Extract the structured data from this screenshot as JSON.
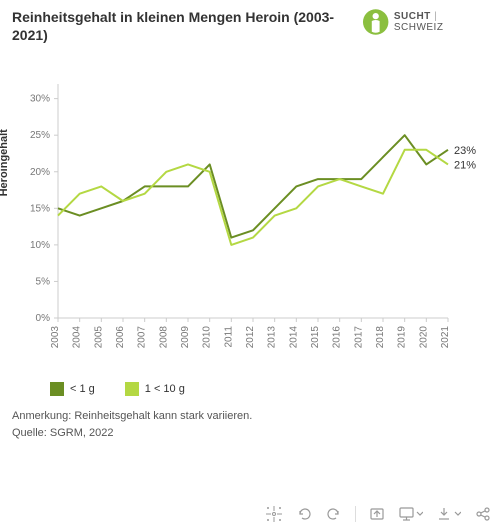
{
  "title": "Reinheitsgehalt in kleinen Mengen Heroin (2003-2021)",
  "logo": {
    "text_bold": "SUCHT",
    "text_light": "SCHWEIZ",
    "color": "#8bbf3f"
  },
  "chart": {
    "type": "line",
    "y_axis_title": "Heroingehalt",
    "y_ticks": [
      0,
      5,
      10,
      15,
      20,
      25,
      30
    ],
    "y_tick_labels": [
      "0%",
      "5%",
      "10%",
      "15%",
      "20%",
      "25%",
      "30%"
    ],
    "ylim": [
      0,
      32
    ],
    "x_categories": [
      "2003",
      "2004",
      "2005",
      "2006",
      "2007",
      "2008",
      "2009",
      "2010",
      "2011",
      "2012",
      "2013",
      "2014",
      "2015",
      "2016",
      "2017",
      "2018",
      "2019",
      "2020",
      "2021"
    ],
    "series": [
      {
        "name": "< 1 g",
        "color": "#6b8e23",
        "values": [
          15,
          14,
          15,
          16,
          18,
          18,
          18,
          21,
          11,
          12,
          15,
          18,
          19,
          19,
          19,
          22,
          25,
          21,
          23
        ],
        "end_label": "23%"
      },
      {
        "name": "1 < 10 g",
        "color": "#b4d843",
        "values": [
          14,
          17,
          18,
          16,
          17,
          20,
          21,
          20,
          10,
          11,
          14,
          15,
          18,
          19,
          18,
          17,
          23,
          23,
          21
        ],
        "end_label": "21%"
      }
    ],
    "line_width": 2,
    "background_color": "#ffffff",
    "axis_color": "#cccccc",
    "tick_color": "#cccccc",
    "tick_label_color": "#777777",
    "tick_label_fontsize": 10,
    "end_label_color": "#333333",
    "end_label_fontsize": 11
  },
  "legend": {
    "items": [
      {
        "label": "< 1 g",
        "color": "#6b8e23"
      },
      {
        "label": "1 < 10 g",
        "color": "#b4d843"
      }
    ]
  },
  "notes": {
    "line1": "Anmerkung: Reinheitsgehalt kann stark variieren.",
    "line2": "Quelle: SGRM, 2022"
  },
  "toolbar": {
    "icons": [
      "crosshair",
      "undo",
      "redo",
      "sep",
      "reset",
      "presentation-dropdown",
      "download-dropdown",
      "share"
    ]
  }
}
